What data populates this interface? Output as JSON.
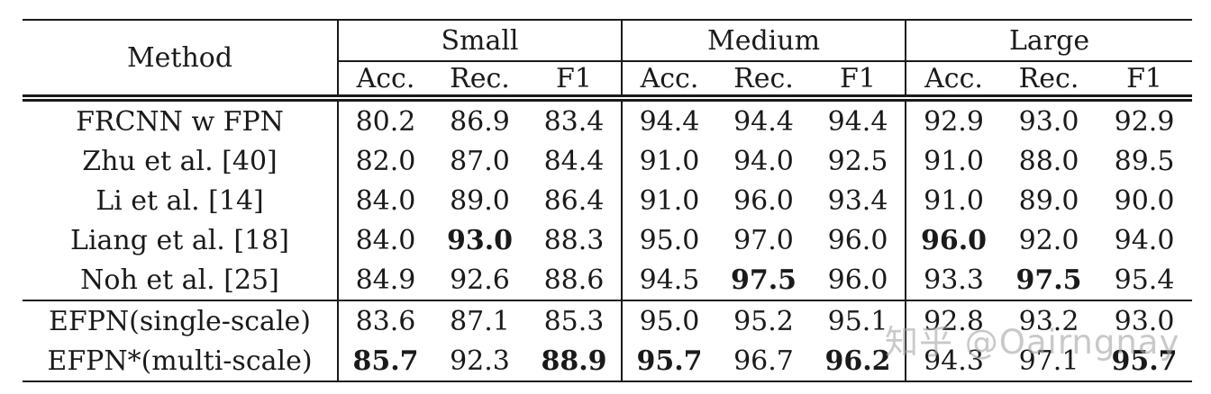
{
  "table": {
    "method_header": "Method",
    "group_headers": [
      "Small",
      "Medium",
      "Large"
    ],
    "metric_headers": [
      "Acc.",
      "Rec.",
      "F1"
    ],
    "rows": [
      {
        "method": "FRCNN w FPN",
        "values": [
          "80.2",
          "86.9",
          "83.4",
          "94.4",
          "94.4",
          "94.4",
          "92.9",
          "93.0",
          "92.9"
        ],
        "bold": []
      },
      {
        "method": "Zhu et al. [40]",
        "values": [
          "82.0",
          "87.0",
          "84.4",
          "91.0",
          "94.0",
          "92.5",
          "91.0",
          "88.0",
          "89.5"
        ],
        "bold": []
      },
      {
        "method": "Li et al. [14]",
        "values": [
          "84.0",
          "89.0",
          "86.4",
          "91.0",
          "96.0",
          "93.4",
          "91.0",
          "89.0",
          "90.0"
        ],
        "bold": []
      },
      {
        "method": "Liang et al. [18]",
        "values": [
          "84.0",
          "93.0",
          "88.3",
          "95.0",
          "97.0",
          "96.0",
          "96.0",
          "92.0",
          "94.0"
        ],
        "bold": [
          1,
          6
        ]
      },
      {
        "method": "Noh et al. [25]",
        "values": [
          "84.9",
          "92.6",
          "88.6",
          "94.5",
          "97.5",
          "96.0",
          "93.3",
          "97.5",
          "95.4"
        ],
        "bold": [
          4,
          7
        ]
      },
      {
        "method": "EFPN(single-scale)",
        "values": [
          "83.6",
          "87.1",
          "85.3",
          "95.0",
          "95.2",
          "95.1",
          "92.8",
          "93.2",
          "93.0"
        ],
        "bold": [],
        "divider_above": true
      },
      {
        "method": "EFPN*(multi-scale)",
        "values": [
          "85.7",
          "92.3",
          "88.9",
          "95.7",
          "96.7",
          "96.2",
          "94.3",
          "97.1",
          "95.7"
        ],
        "bold": [
          0,
          2,
          3,
          5,
          8
        ]
      }
    ]
  },
  "watermark": {
    "text": "知乎 @Oairngnay"
  },
  "colors": {
    "background": "#ffffff",
    "text": "#1a1a1a",
    "border": "#1a1a1a",
    "watermark": "#a9a9a9"
  }
}
